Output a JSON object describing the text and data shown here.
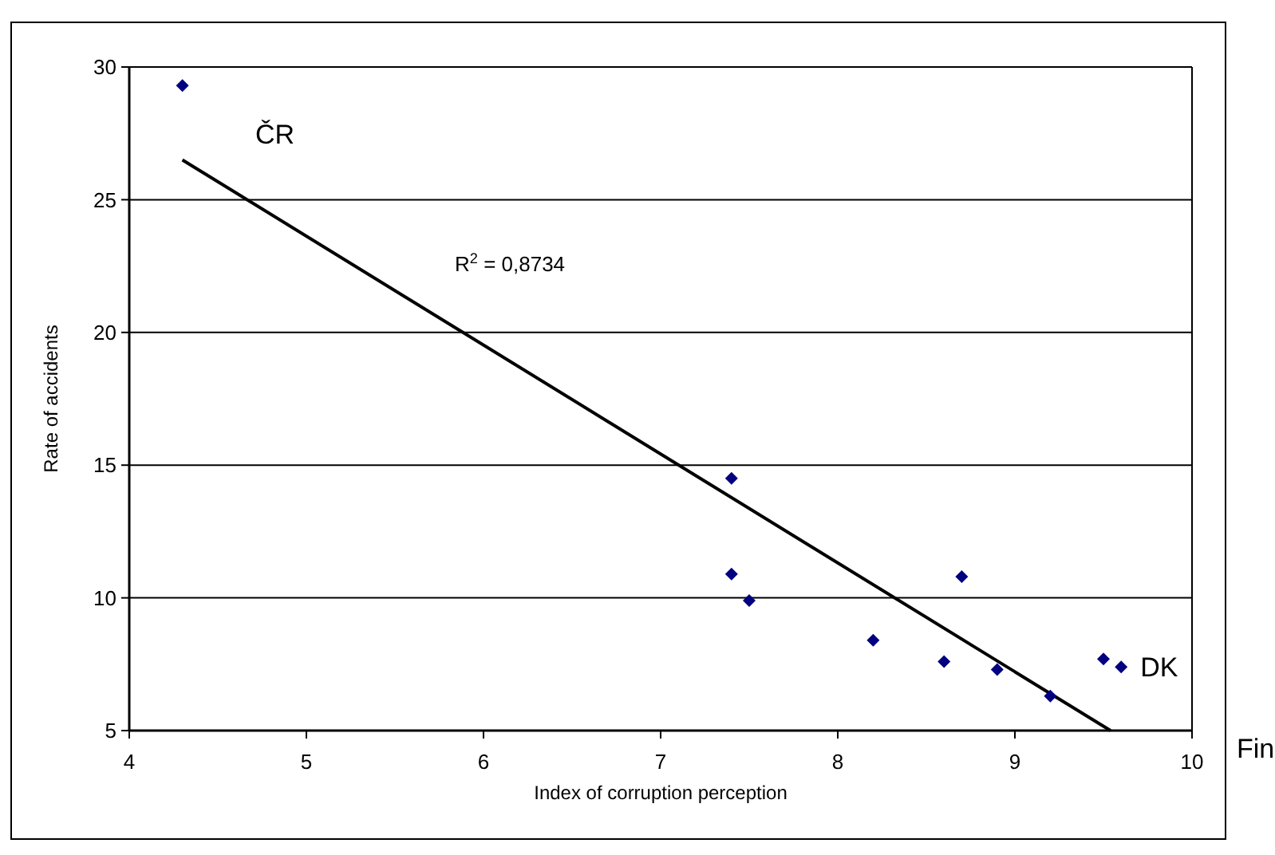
{
  "chart_data": {
    "type": "scatter",
    "xlabel": "Index of corruption perception",
    "ylabel": "Rate of accidents",
    "xlim": [
      4,
      10
    ],
    "xticks": [
      4,
      5,
      6,
      7,
      8,
      9,
      10
    ],
    "ylim": [
      5,
      30
    ],
    "yticks": [
      5,
      10,
      15,
      20,
      25,
      30
    ],
    "grid": "y",
    "marker": "diamond",
    "series": [
      {
        "color": "#000080",
        "x": [
          4.3,
          7.4,
          7.4,
          7.5,
          8.2,
          8.6,
          8.7,
          8.9,
          9.2,
          9.5,
          9.6
        ],
        "values": [
          29.3,
          14.5,
          10.9,
          9.9,
          8.4,
          7.6,
          10.8,
          7.3,
          6.3,
          7.7,
          7.4
        ]
      },
      {
        "type": "line",
        "marker": "none",
        "color": "#000000",
        "x": [
          4.3,
          9.54
        ],
        "values": [
          26.5,
          5
        ]
      }
    ],
    "annotations": [
      "ČR",
      {
        "text": "DK",
        "x": 9.6,
        "y": 7.4
      },
      "Fin",
      "R$^{2}$ = 0,8734"
    ]
  }
}
